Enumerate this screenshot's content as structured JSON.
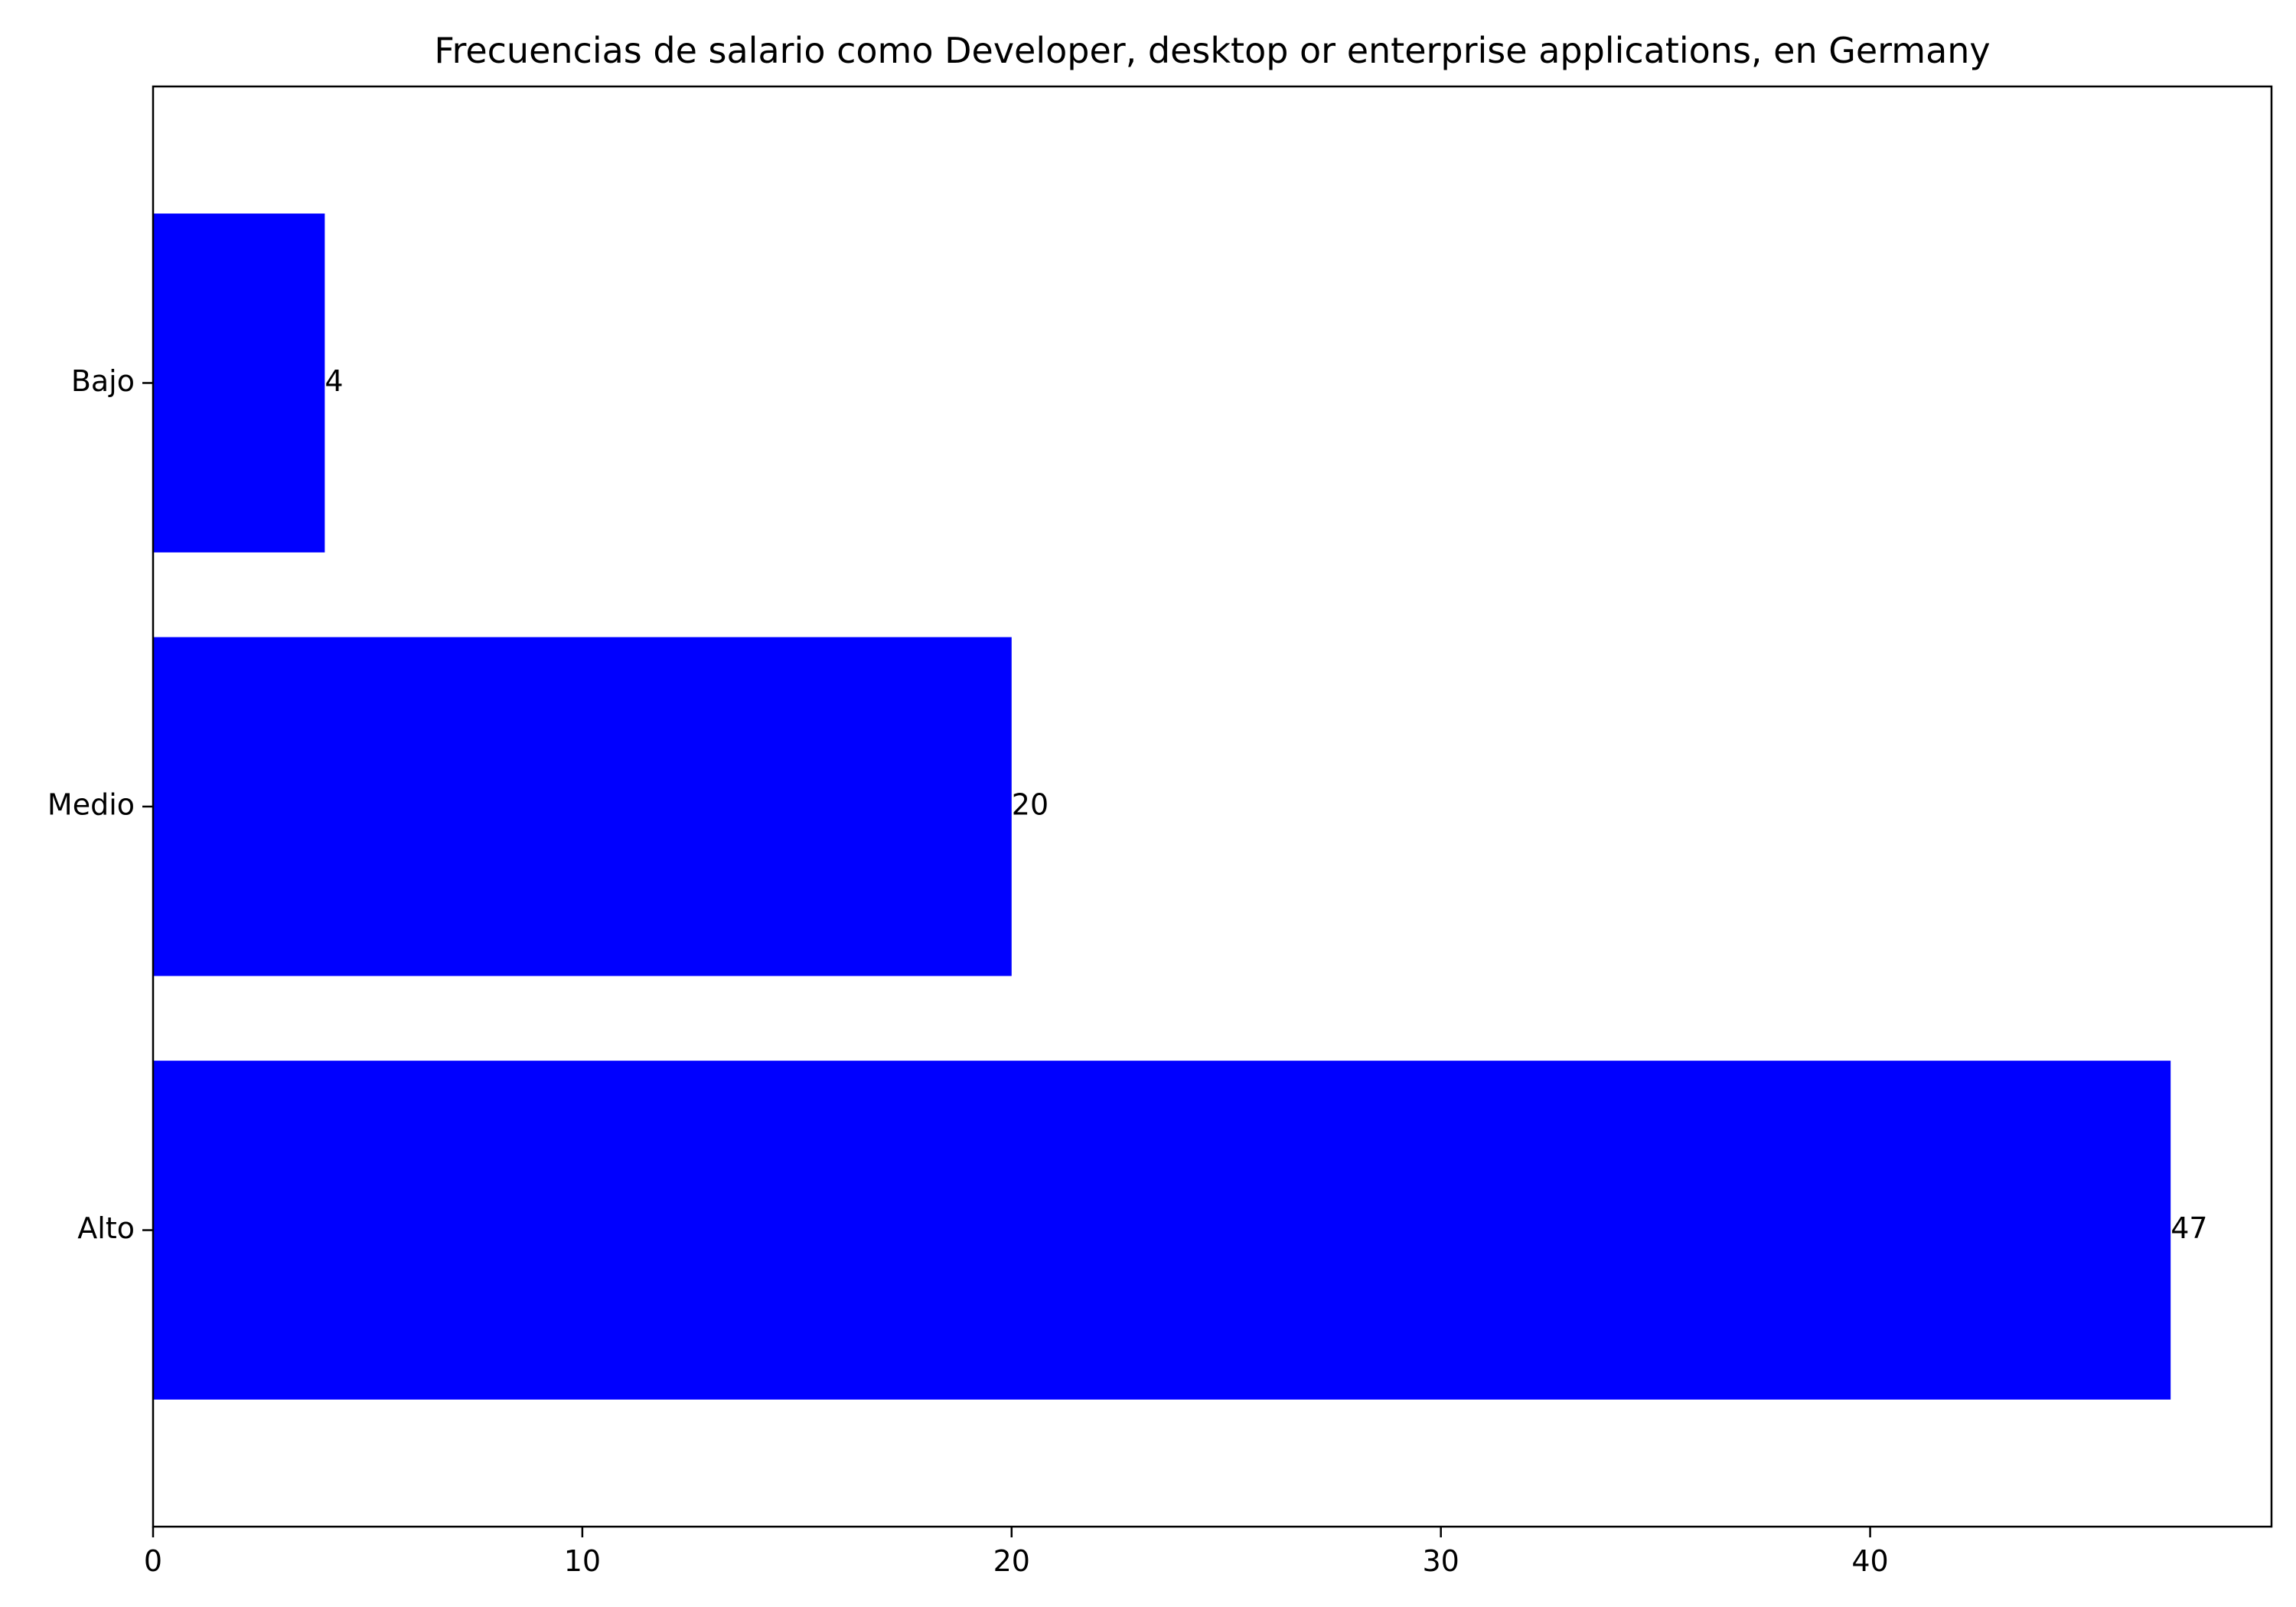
{
  "chart_data": {
    "type": "bar",
    "orientation": "horizontal",
    "title": "Frecuencias de salario como Developer, desktop or enterprise applications, en Germany",
    "xlabel": "",
    "ylabel": "",
    "categories": [
      "Bajo",
      "Medio",
      "Alto"
    ],
    "values": [
      4,
      20,
      47
    ],
    "data_labels": [
      "4",
      "20",
      "47"
    ],
    "xlim": [
      0,
      49.35
    ],
    "xticks": [
      0,
      10,
      20,
      30,
      40
    ],
    "xtick_labels": [
      "0",
      "10",
      "20",
      "30",
      "40"
    ],
    "bar_color": "#0000ff",
    "grid": false,
    "legend": "none"
  }
}
